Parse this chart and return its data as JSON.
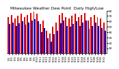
{
  "title": "Milwaukee Weather Dew Point  Daily High/Low",
  "high_values": [
    68,
    72,
    65,
    70,
    74,
    68,
    72,
    76,
    78,
    75,
    55,
    62,
    42,
    38,
    50,
    58,
    72,
    76,
    68,
    65,
    70,
    74,
    68,
    72,
    76,
    62,
    68,
    72,
    68,
    65,
    58
  ],
  "low_values": [
    55,
    58,
    52,
    57,
    60,
    54,
    58,
    62,
    64,
    60,
    40,
    48,
    28,
    22,
    36,
    42,
    56,
    62,
    52,
    50,
    55,
    60,
    52,
    58,
    62,
    46,
    52,
    58,
    52,
    48,
    42
  ],
  "xlabels": [
    "7/1",
    "7/2",
    "7/3",
    "7/4",
    "7/5",
    "7/6",
    "7/7",
    "7/8",
    "7/9",
    "7/10",
    "7/11",
    "7/12",
    "7/13",
    "7/14",
    "7/15",
    "7/16",
    "7/17",
    "7/18",
    "7/19",
    "7/20",
    "7/21",
    "7/22",
    "7/23",
    "7/24",
    "7/25",
    "7/26",
    "7/27",
    "7/28",
    "7/29",
    "7/30",
    "7/31"
  ],
  "ylim": [
    0,
    80
  ],
  "yticks": [
    10,
    20,
    30,
    40,
    50,
    60,
    70,
    80
  ],
  "ytick_labels": [
    "10",
    "20",
    "30",
    "40",
    "50",
    "60",
    "70",
    "80"
  ],
  "high_color": "#dd0000",
  "low_color": "#0000cc",
  "bg_color": "#ffffff",
  "bar_width": 0.42,
  "title_fontsize": 4.2,
  "tick_fontsize": 3.2,
  "dotted_line_indices": [
    19,
    20,
    21,
    22,
    23
  ]
}
